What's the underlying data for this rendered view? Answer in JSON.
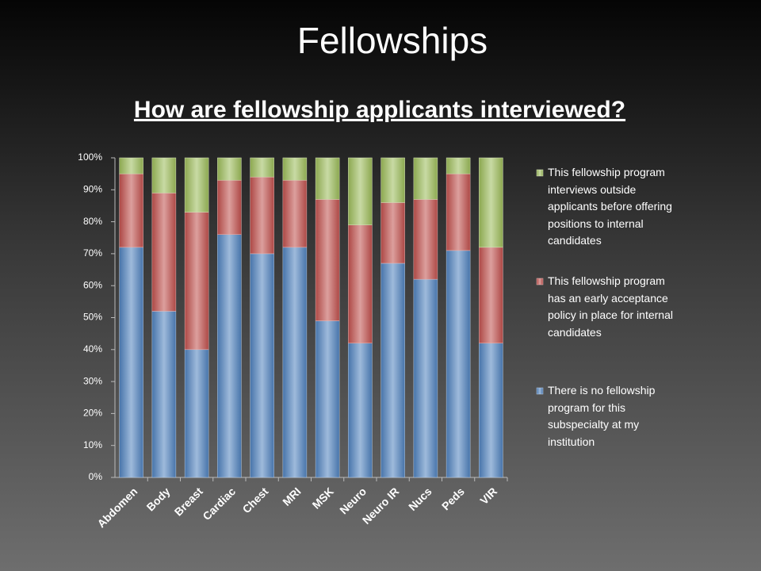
{
  "chart_data": {
    "type": "bar",
    "stacked": true,
    "title": "Fellowships",
    "subtitle": "How are fellowship applicants interviewed?",
    "categories": [
      "Abdomen",
      "Body",
      "Breast",
      "Cardiac",
      "Chest",
      "MRI",
      "MSK",
      "Neuro",
      "Neuro IR",
      "Nucs",
      "Peds",
      "VIR"
    ],
    "series": [
      {
        "name": "There is no fellowship program for this subspecialty at my institution",
        "color": "#4f81bd",
        "values": [
          72,
          52,
          40,
          76,
          70,
          72,
          49,
          42,
          67,
          62,
          71,
          42
        ]
      },
      {
        "name": "This fellowship program has an early acceptance policy in place for internal candidates",
        "color": "#c0504d",
        "values": [
          23,
          37,
          43,
          17,
          24,
          21,
          38,
          37,
          19,
          25,
          24,
          30
        ]
      },
      {
        "name": "This fellowship program interviews outside applicants before offering positions to internal candidates",
        "color": "#9bbb59",
        "values": [
          5,
          11,
          17,
          7,
          6,
          7,
          13,
          21,
          14,
          13,
          5,
          28
        ]
      }
    ],
    "ylim": [
      0,
      100
    ],
    "yticks": [
      {
        "value": 0,
        "label": "0%"
      },
      {
        "value": 10,
        "label": "10%"
      },
      {
        "value": 20,
        "label": "20%"
      },
      {
        "value": 30,
        "label": "30%"
      },
      {
        "value": 40,
        "label": "40%"
      },
      {
        "value": 50,
        "label": "50%"
      },
      {
        "value": 60,
        "label": "60%"
      },
      {
        "value": 70,
        "label": "70%"
      },
      {
        "value": 80,
        "label": "80%"
      },
      {
        "value": 90,
        "label": "90%"
      },
      {
        "value": 100,
        "label": "100%"
      }
    ],
    "grid": false,
    "legend": "right"
  }
}
